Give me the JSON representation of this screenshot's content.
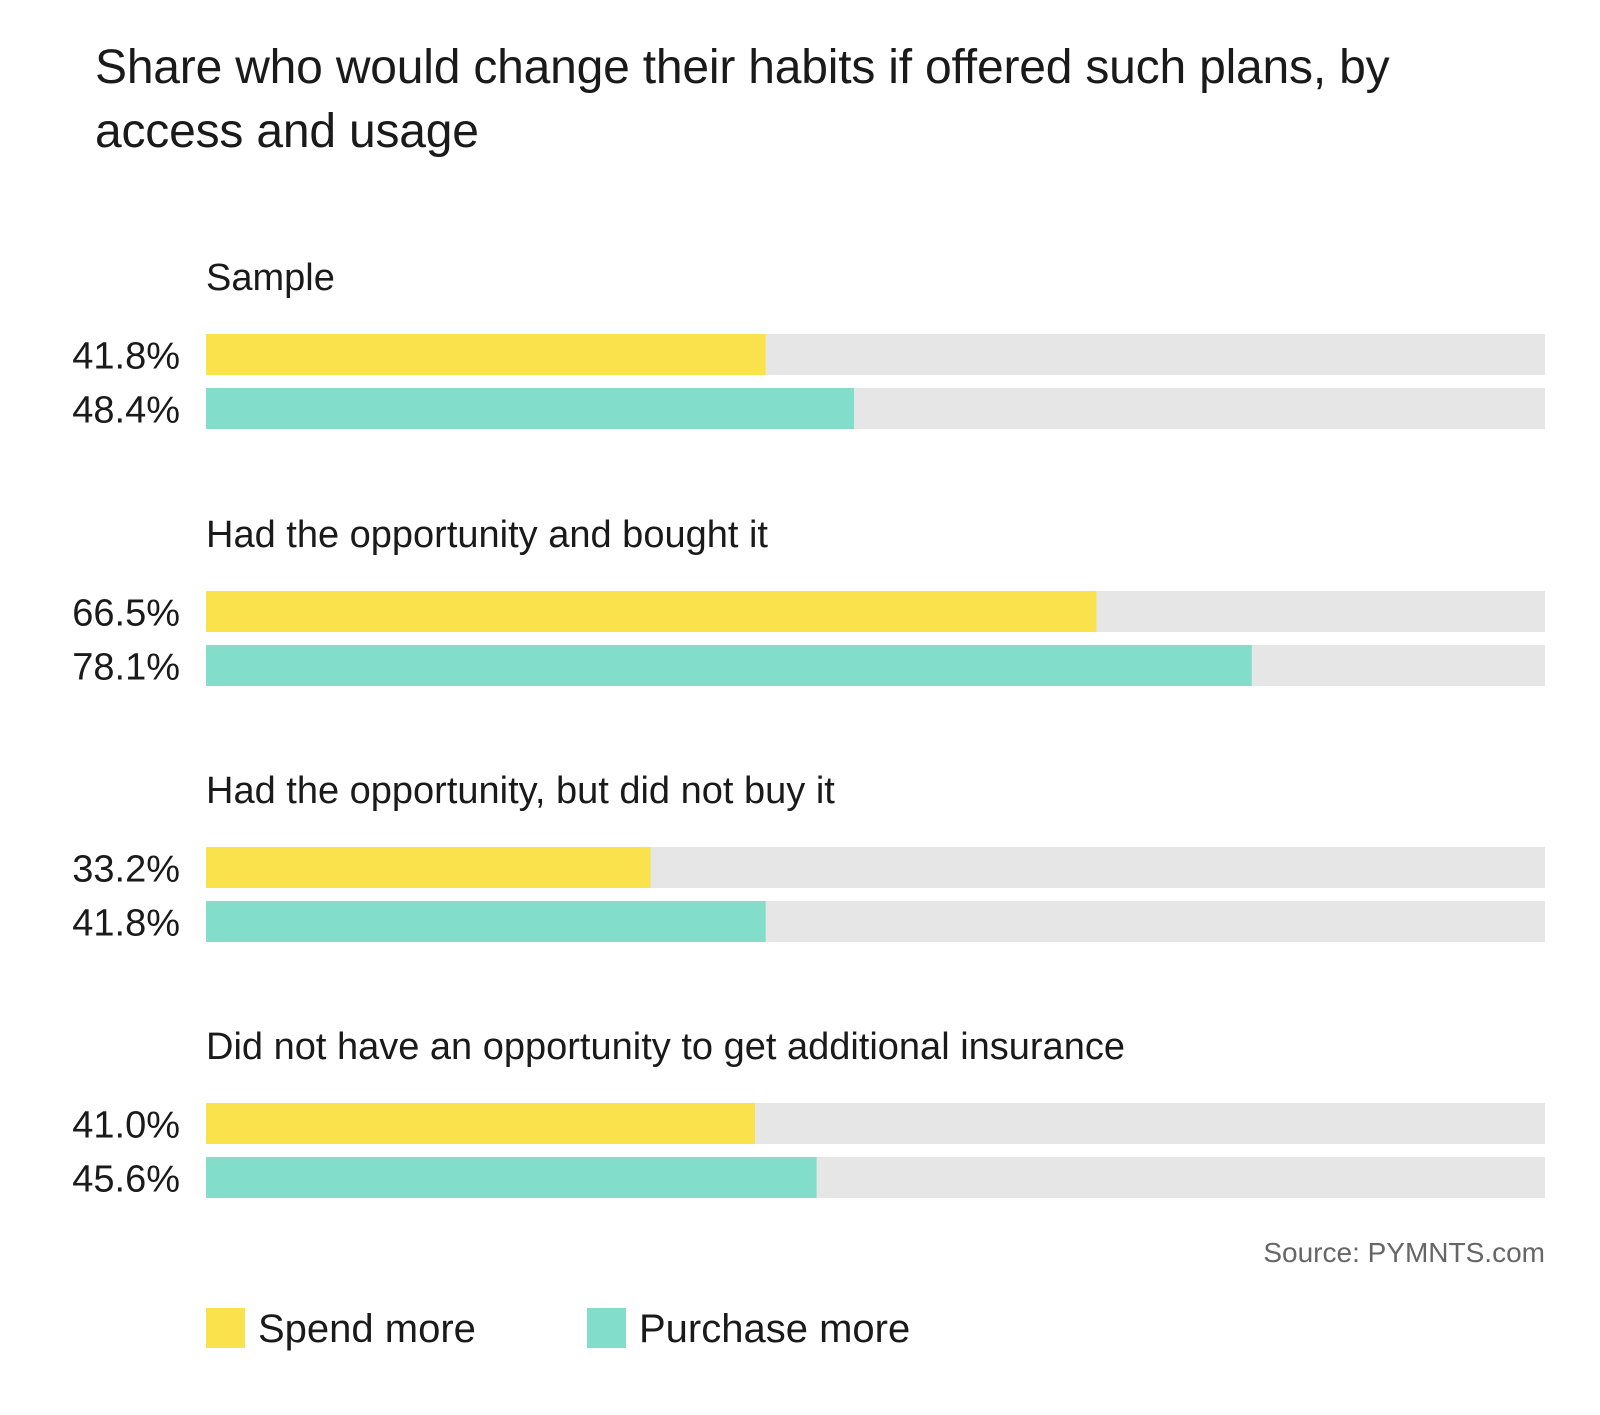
{
  "chart_data": {
    "type": "bar",
    "orientation": "horizontal",
    "title": "Share who would change their habits if offered such plans, by access and usage",
    "categories": [
      "Sample",
      "Had the opportunity and bought it",
      "Had the opportunity, but did not buy it",
      "Did not have an opportunity to get additional insurance"
    ],
    "series": [
      {
        "name": "Spend more",
        "color": "#F9E24B",
        "values": [
          41.8,
          66.5,
          33.2,
          41.0
        ],
        "value_labels": [
          "41.8%",
          "66.5%",
          "33.2%",
          "41.0%"
        ]
      },
      {
        "name": "Purchase more",
        "color": "#82DDCA",
        "values": [
          48.4,
          78.1,
          41.8,
          45.6
        ],
        "value_labels": [
          "48.4%",
          "78.1%",
          "41.8%",
          "45.6%"
        ]
      }
    ],
    "xlim": [
      0,
      100
    ],
    "track_color": "#E6E6E7",
    "grid": false,
    "legend": "bottom-left",
    "source": "Source: PYMNTS.com"
  }
}
